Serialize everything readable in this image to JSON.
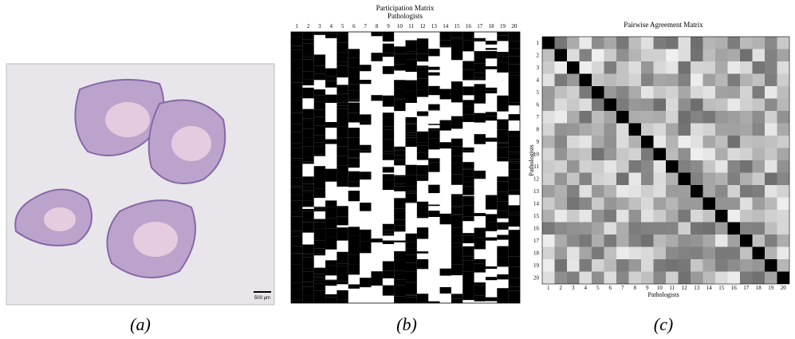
{
  "panels": [
    {
      "caption": "(a)",
      "scale_bar": "500 μm"
    },
    {
      "caption": "(b)",
      "title": "Participation Matrix",
      "xlabel": "Pathologists",
      "xticks": [
        1,
        2,
        3,
        4,
        5,
        6,
        7,
        8,
        9,
        10,
        11,
        12,
        13,
        14,
        15,
        16,
        17,
        18,
        19,
        20
      ]
    },
    {
      "caption": "(c)",
      "title": "Pairwise Agreement Matrix",
      "xlabel": "Pathologists",
      "ylabel": "Pathologists",
      "xticks": [
        1,
        2,
        3,
        4,
        5,
        6,
        7,
        8,
        9,
        10,
        11,
        12,
        13,
        14,
        15,
        16,
        17,
        18,
        19,
        20
      ],
      "yticks": [
        1,
        2,
        3,
        4,
        5,
        6,
        7,
        8,
        9,
        10,
        11,
        12,
        13,
        14,
        15,
        16,
        17,
        18,
        19,
        20
      ]
    }
  ]
}
